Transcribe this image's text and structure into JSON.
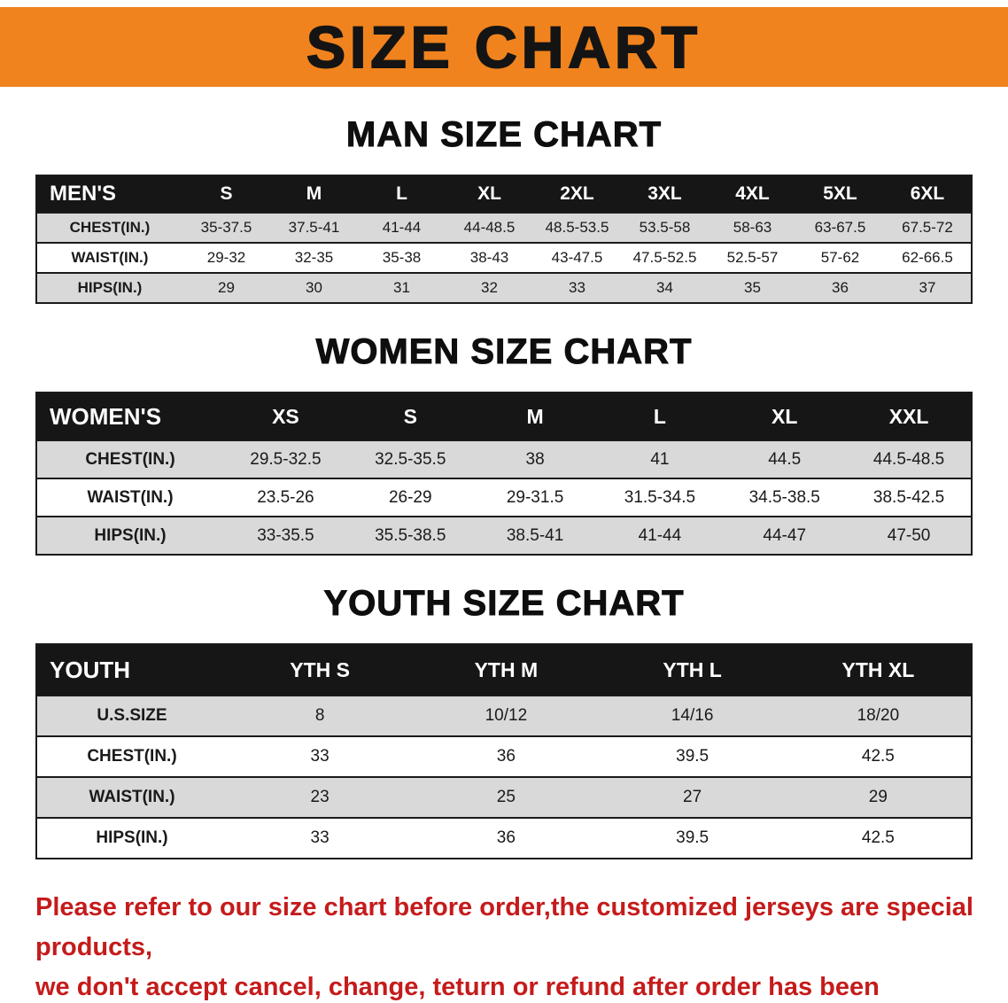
{
  "banner": {
    "title": "SIZE CHART",
    "bg_color": "#f0831e"
  },
  "sections": [
    {
      "id": "mens",
      "heading": "MAN SIZE CHART",
      "table_label": "MEN'S",
      "columns": [
        "S",
        "M",
        "L",
        "XL",
        "2XL",
        "3XL",
        "4XL",
        "5XL",
        "6XL"
      ],
      "rows": [
        {
          "label": "CHEST(IN.)",
          "values": [
            "35-37.5",
            "37.5-41",
            "41-44",
            "44-48.5",
            "48.5-53.5",
            "53.5-58",
            "58-63",
            "63-67.5",
            "67.5-72"
          ]
        },
        {
          "label": "WAIST(IN.)",
          "values": [
            "29-32",
            "32-35",
            "35-38",
            "38-43",
            "43-47.5",
            "47.5-52.5",
            "52.5-57",
            "57-62",
            "62-66.5"
          ]
        },
        {
          "label": "HIPS(IN.)",
          "values": [
            "29",
            "30",
            "31",
            "32",
            "33",
            "34",
            "35",
            "36",
            "37"
          ]
        }
      ]
    },
    {
      "id": "womens",
      "heading": "WOMEN SIZE CHART",
      "table_label": "WOMEN'S",
      "columns": [
        "XS",
        "S",
        "M",
        "L",
        "XL",
        "XXL"
      ],
      "rows": [
        {
          "label": "CHEST(IN.)",
          "values": [
            "29.5-32.5",
            "32.5-35.5",
            "38",
            "41",
            "44.5",
            "44.5-48.5"
          ]
        },
        {
          "label": "WAIST(IN.)",
          "values": [
            "23.5-26",
            "26-29",
            "29-31.5",
            "31.5-34.5",
            "34.5-38.5",
            "38.5-42.5"
          ]
        },
        {
          "label": "HIPS(IN.)",
          "values": [
            "33-35.5",
            "35.5-38.5",
            "38.5-41",
            "41-44",
            "44-47",
            "47-50"
          ]
        }
      ]
    },
    {
      "id": "youth",
      "heading": "YOUTH SIZE CHART",
      "table_label": "YOUTH",
      "columns": [
        "YTH S",
        "YTH M",
        "YTH L",
        "YTH XL"
      ],
      "rows": [
        {
          "label": "U.S.SIZE",
          "values": [
            "8",
            "10/12",
            "14/16",
            "18/20"
          ]
        },
        {
          "label": "CHEST(IN.)",
          "values": [
            "33",
            "36",
            "39.5",
            "42.5"
          ]
        },
        {
          "label": "WAIST(IN.)",
          "values": [
            "23",
            "25",
            "27",
            "29"
          ]
        },
        {
          "label": "HIPS(IN.)",
          "values": [
            "33",
            "36",
            "39.5",
            "42.5"
          ]
        }
      ]
    }
  ],
  "disclaimer": {
    "color": "#c51b1b",
    "lines": [
      "Please refer to our size chart before order,the customized jerseys are special products,",
      "we don't accept cancel, change, teturn or refund after order has been placed!"
    ]
  }
}
